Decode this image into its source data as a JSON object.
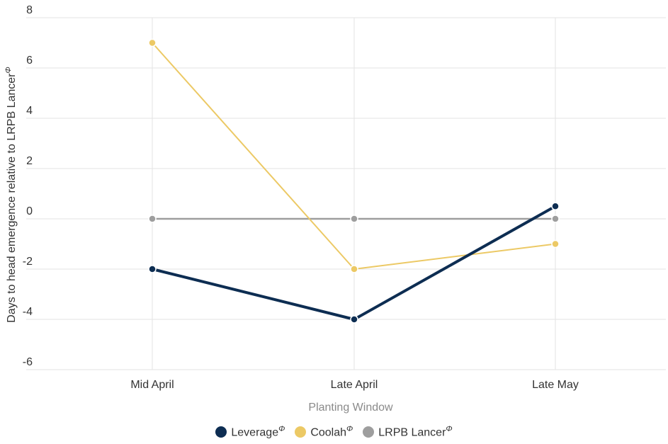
{
  "chart_data": {
    "type": "line",
    "categories": [
      "Mid April",
      "Late April",
      "Late May"
    ],
    "series": [
      {
        "name": "Leverage",
        "superscript": "Φ",
        "values": [
          -2,
          -4,
          0.5
        ],
        "color": "#0d2d52"
      },
      {
        "name": "Coolah",
        "superscript": "Φ",
        "values": [
          7,
          -2,
          -1
        ],
        "color": "#ecc965"
      },
      {
        "name": "LRPB Lancer",
        "superscript": "Φ",
        "values": [
          0,
          0,
          0
        ],
        "color": "#9e9e9e"
      }
    ],
    "yticks": [
      "8",
      "6",
      "4",
      "2",
      "0",
      "-2",
      "-4",
      "-6"
    ],
    "ylim": [
      -6,
      8
    ],
    "xlabel": "Planting Window",
    "ylabel": "Days to head emergence relative to LRPB Lancer",
    "ylabel_superscript": "Φ",
    "grid": true,
    "legend_position": "bottom"
  }
}
